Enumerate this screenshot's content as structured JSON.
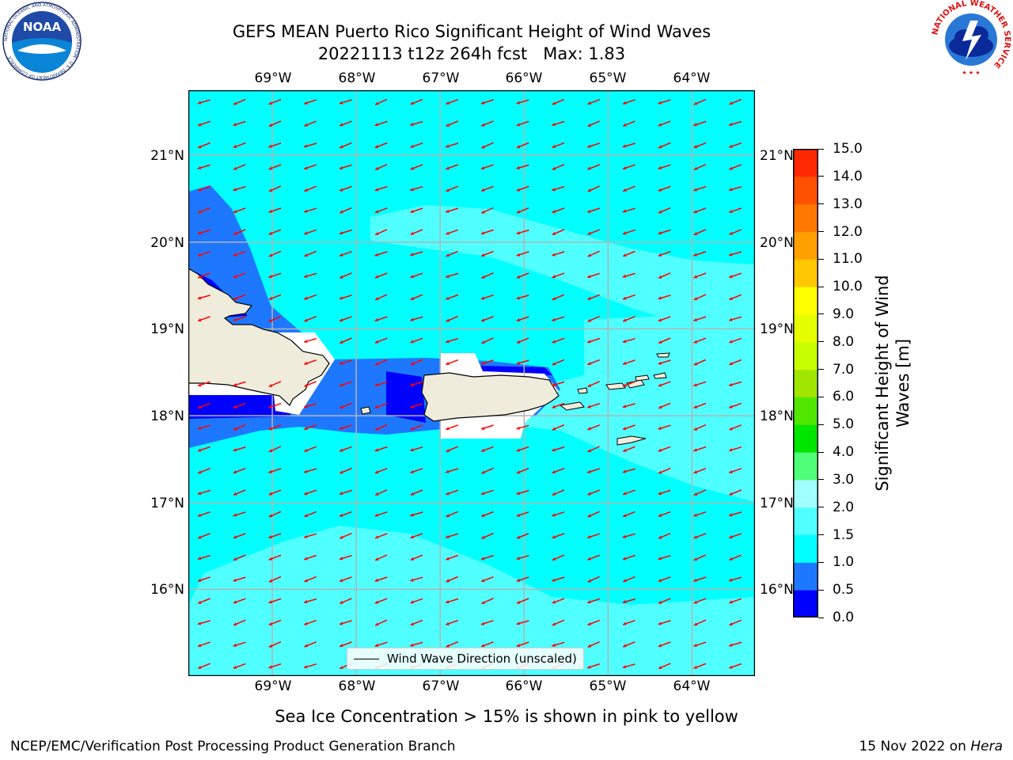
{
  "header": {
    "title_line1": "GEFS MEAN Puerto Rico Significant Height of Wind Waves",
    "title_line2": "20221113 t12z 264h fcst   Max: 1.83"
  },
  "map": {
    "lon_ticks": [
      "69°W",
      "68°W",
      "67°W",
      "66°W",
      "65°W",
      "64°W"
    ],
    "lat_ticks": [
      "21°N",
      "20°N",
      "19°N",
      "18°N",
      "17°N",
      "16°N"
    ],
    "background_color": "#00ffff",
    "land_color": "#efecdc",
    "arrow_color": "#ff0000",
    "legend_label": "Wind Wave Direction (unscaled)"
  },
  "colorbar": {
    "title": "Significant Height of Wind Waves [m]",
    "title_line1": "Significant Height of Wind",
    "title_line2": "Waves [m]",
    "labels": [
      "0.0",
      "0.5",
      "1.0",
      "1.5",
      "2.0",
      "3.0",
      "4.0",
      "5.0",
      "6.0",
      "7.0",
      "8.0",
      "9.0",
      "10.0",
      "11.0",
      "12.0",
      "13.0",
      "14.0",
      "15.0"
    ],
    "colors": [
      "#0000ff",
      "#1e78ff",
      "#00ffff",
      "#50ffff",
      "#a0ffff",
      "#50ff78",
      "#00e600",
      "#50e600",
      "#a0e600",
      "#c8ff00",
      "#e6ff00",
      "#ffff00",
      "#ffc800",
      "#ffa000",
      "#ff7800",
      "#ff5000",
      "#ff2800",
      "#ff0000"
    ]
  },
  "footer": {
    "sea_ice_note": "Sea Ice Concentration > 15% is shown in pink to yellow",
    "branch": "NCEP/EMC/Verification Post Processing Product Generation Branch",
    "date_text": "15 Nov 2022 on ",
    "host": "Hera"
  },
  "logos": {
    "noaa_text": "NOAA",
    "noaa_ring_text": "NATIONAL OCEANIC AND ATMOSPHERIC ADMINISTRATION · U.S. DEPARTMENT OF COMMERCE",
    "nws_ring_text": "NATIONAL WEATHER SERVICE"
  },
  "chart_data": {
    "type": "map",
    "variable": "Significant Height of Wind Waves",
    "units": "m",
    "forecast": "20221113 t12z 264h fcst",
    "max_value": 1.83,
    "lon_range": [
      -70,
      -63.25
    ],
    "lat_range": [
      15.0,
      21.75
    ],
    "color_levels": [
      0.0,
      0.5,
      1.0,
      1.5,
      2.0,
      3.0,
      4.0,
      5.0,
      6.0,
      7.0,
      8.0,
      9.0,
      10.0,
      11.0,
      12.0,
      13.0,
      14.0,
      15.0
    ],
    "dominant_range": [
      1.0,
      1.5
    ],
    "wave_direction": "toward southwest",
    "grid": true
  }
}
